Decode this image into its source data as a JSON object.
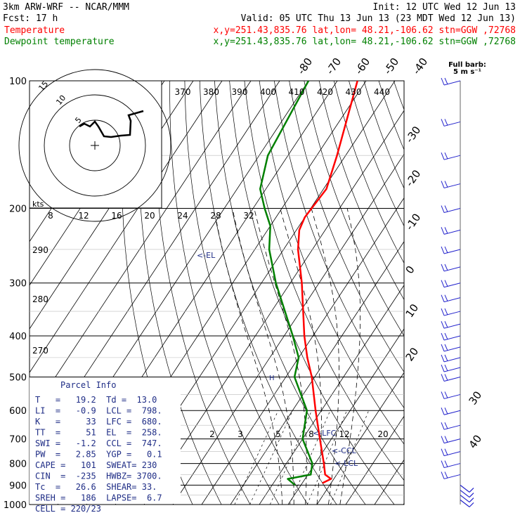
{
  "header": {
    "line1_left": "3km ARW-WRF -- NCAR/MMM",
    "line1_right": "Init: 12 UTC Wed 12 Jun 13",
    "line2_left": "Fcst:    17 h",
    "line2_right": "Valid: 05 UTC Thu 13 Jun 13 (23 MDT Wed 12 Jun 13)",
    "temp_label": "Temperature",
    "temp_info": "x,y=251.43,835.76   lat,lon= 48.21,-106.62  stn=GGW ,72768",
    "dew_label": "Dewpoint temperature",
    "dew_info": "x,y=251.43,835.76   lat,lon= 48.21,-106.62  stn=GGW ,72768",
    "barb_key_1": "Full barb:",
    "barb_key_2": "5 m s⁻¹"
  },
  "colors": {
    "temperature": "#ff0000",
    "dewpoint": "#008000",
    "panel": "#1f2d86",
    "wind": "#2222cc"
  },
  "chart_data": {
    "type": "skew-t",
    "pressure_ticks": [
      "100",
      "200",
      "300",
      "400",
      "500",
      "600",
      "700",
      "800",
      "900",
      "1000"
    ],
    "skewed_temp_labels": [
      "-80",
      "-70",
      "-60",
      "-50",
      "-40",
      "-30",
      "-20",
      "-10",
      "0",
      "10",
      "20",
      "30",
      "40"
    ],
    "theta_labels": [
      "370",
      "380",
      "390",
      "400",
      "410",
      "420",
      "430",
      "440"
    ],
    "mixing_ratio_labels": [
      "2",
      "3",
      "5",
      "8",
      "12",
      "20"
    ],
    "left_theta_labels": [
      "290",
      "280",
      "270"
    ],
    "hodograph": {
      "units": "kts",
      "rings": [
        "5",
        "10",
        "15"
      ],
      "speed_ticks": [
        "8",
        "12",
        "16",
        "20",
        "24",
        "28",
        "32"
      ]
    },
    "annotations": {
      "el": "<-EL",
      "lfc": "<-LFC",
      "ccl": "<-CCL",
      "lcl": "<-LCL",
      "marker": "H"
    },
    "temperature": [
      {
        "p": 890,
        "t": 17
      },
      {
        "p": 870,
        "t": 19
      },
      {
        "p": 850,
        "t": 16
      },
      {
        "p": 800,
        "t": 13
      },
      {
        "p": 700,
        "t": 6
      },
      {
        "p": 600,
        "t": -2
      },
      {
        "p": 500,
        "t": -11
      },
      {
        "p": 450,
        "t": -17
      },
      {
        "p": 400,
        "t": -23
      },
      {
        "p": 300,
        "t": -36
      },
      {
        "p": 250,
        "t": -45
      },
      {
        "p": 225,
        "t": -49
      },
      {
        "p": 210,
        "t": -50
      },
      {
        "p": 180,
        "t": -49
      },
      {
        "p": 150,
        "t": -53
      },
      {
        "p": 100,
        "t": -63
      }
    ],
    "dewpoint": [
      {
        "p": 900,
        "t": 8
      },
      {
        "p": 870,
        "t": 4
      },
      {
        "p": 850,
        "t": 11
      },
      {
        "p": 800,
        "t": 9
      },
      {
        "p": 700,
        "t": 0
      },
      {
        "p": 600,
        "t": -5
      },
      {
        "p": 500,
        "t": -17
      },
      {
        "p": 450,
        "t": -20
      },
      {
        "p": 400,
        "t": -27
      },
      {
        "p": 300,
        "t": -45
      },
      {
        "p": 250,
        "t": -55
      },
      {
        "p": 220,
        "t": -60
      },
      {
        "p": 200,
        "t": -66
      },
      {
        "p": 180,
        "t": -72
      },
      {
        "p": 150,
        "t": -77
      },
      {
        "p": 100,
        "t": -80
      }
    ],
    "wind_pressures": [
      100,
      125,
      150,
      175,
      200,
      225,
      250,
      275,
      300,
      325,
      350,
      375,
      400,
      425,
      450,
      475,
      500,
      550,
      600,
      650,
      700,
      750,
      800,
      850,
      900,
      925,
      950,
      975
    ]
  },
  "parcel_info": {
    "title": "Parcel Info",
    "rows": [
      "T   =   19.2  Td =  13.0",
      "LI  =   -0.9  LCL =  798.",
      "K   =     33  LFC =  680.",
      "TT  =     51  EL  =  258.",
      "SWI =   -1.2  CCL =  747.",
      "PW  =   2.85  YGP =   0.1",
      "CAPE =   101  SWEAT= 230",
      "CIN  =  -235  HWBZ= 3700.",
      "Tc  =   26.6  SHEAR= 33.",
      "SREH =   186  LAPSE=  6.7",
      "CELL = 220/23"
    ]
  }
}
